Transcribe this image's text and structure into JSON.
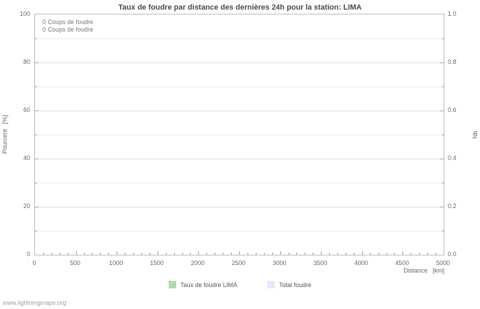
{
  "page": {
    "footer": "www.lightningmaps.org"
  },
  "chart_data": {
    "type": "line",
    "title": "Taux de foudre par distance des dernières 24h pour la station: LIMA",
    "xlabel": "Distance   [km]",
    "ylabel_left": "Pourcent   [%]",
    "ylabel_right": "Nb",
    "xlim": [
      0,
      5000
    ],
    "ylim_left": [
      0,
      100
    ],
    "ylim_right": [
      0.0,
      1.0
    ],
    "x_ticks": [
      0,
      500,
      1000,
      1500,
      2000,
      2500,
      3000,
      3500,
      4000,
      4500,
      5000
    ],
    "y_ticks_left": [
      0,
      20,
      40,
      60,
      80,
      100
    ],
    "y_ticks_right": [
      "0.0",
      "0.2",
      "0.4",
      "0.6",
      "0.8",
      "1.0"
    ],
    "grid": true,
    "legend_position": "bottom",
    "annotations": [
      "0 Coups de foudre",
      "0 Coups de foudre"
    ],
    "series": [
      {
        "name": "Taux de foudre LIMA",
        "color": "#aedcae",
        "x": [],
        "values": []
      },
      {
        "name": "Total foudre",
        "color": "#e6e6f7",
        "x": [],
        "values": []
      }
    ]
  },
  "legend": {
    "items": [
      {
        "label": "Taux de foudre LIMA",
        "color": "#aedcae"
      },
      {
        "label": "Total foudre",
        "color": "#e6e6f7"
      }
    ]
  }
}
